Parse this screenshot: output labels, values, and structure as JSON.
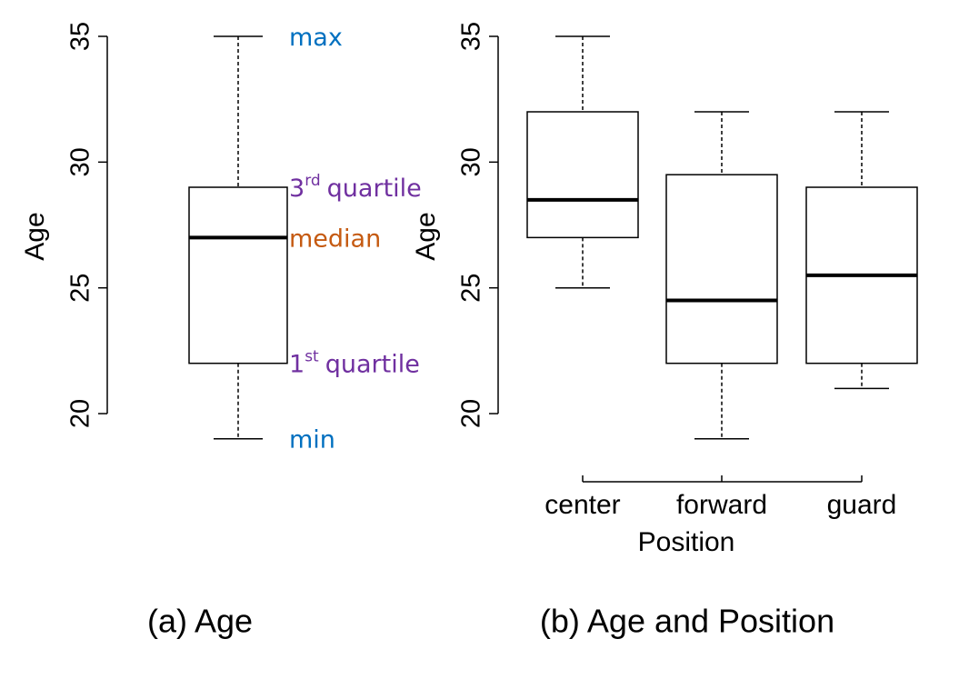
{
  "chart_data": [
    {
      "type": "box",
      "ylabel": "Age",
      "caption": "(a) Age",
      "ylim": [
        19,
        35
      ],
      "yticks": [
        20,
        25,
        30,
        35
      ],
      "boxes": [
        {
          "min": 19,
          "q1": 22,
          "median": 27,
          "q3": 29,
          "max": 35
        }
      ],
      "annotations": [
        {
          "text": "max",
          "color": "#0070c0"
        },
        {
          "text": "3",
          "sup": "rd",
          "rest": "quartile",
          "color": "#7030a0"
        },
        {
          "text": "median",
          "color": "#c55a11"
        },
        {
          "text": "1",
          "sup": "st",
          "rest": "quartile",
          "color": "#7030a0"
        },
        {
          "text": "min",
          "color": "#0070c0"
        }
      ]
    },
    {
      "type": "box",
      "ylabel": "Age",
      "xlabel": "Position",
      "caption": "(b) Age and Position",
      "ylim": [
        19,
        35
      ],
      "yticks": [
        20,
        25,
        30,
        35
      ],
      "categories": [
        "center",
        "forward",
        "guard"
      ],
      "boxes": [
        {
          "min": 25,
          "q1": 27,
          "median": 28.5,
          "q3": 32,
          "max": 35
        },
        {
          "min": 19,
          "q1": 22,
          "median": 24.5,
          "q3": 29.5,
          "max": 32
        },
        {
          "min": 21,
          "q1": 22,
          "median": 25.5,
          "q3": 29,
          "max": 32
        }
      ]
    }
  ]
}
